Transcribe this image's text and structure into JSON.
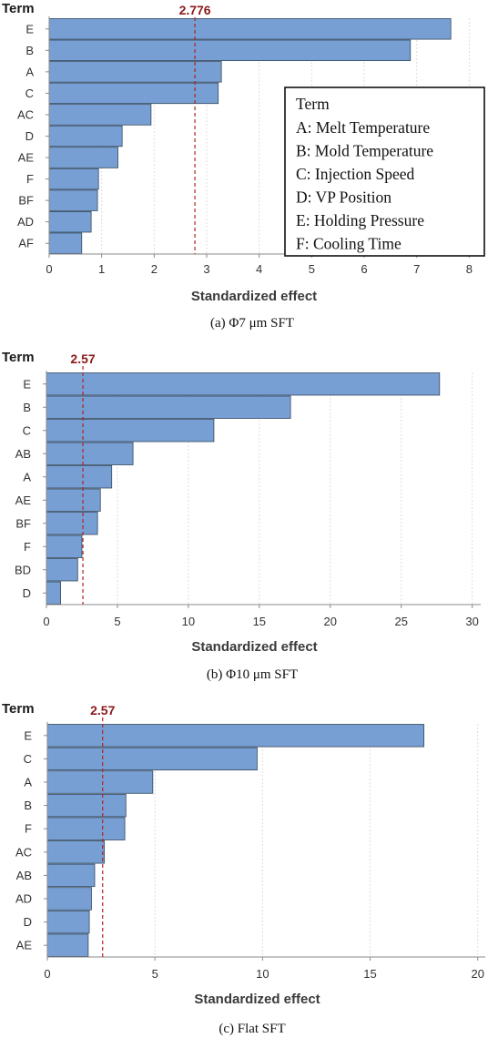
{
  "colors": {
    "bar_fill": "#779fd4",
    "bar_stroke": "#34495e",
    "ref_line": "#b22222",
    "ref_label": "#8b1a1a",
    "grid": "#dddddd",
    "axis": "#888888"
  },
  "legend": {
    "title": "Term",
    "items": [
      "A: Melt Temperature",
      "B: Mold Temperature",
      "C: Injection Speed",
      "D: VP Position",
      "E: Holding Pressure",
      "F: Cooling Time"
    ]
  },
  "chart_data": [
    {
      "type": "bar",
      "orientation": "horizontal",
      "ytitle": "Term",
      "xlabel": "Standardized effect",
      "caption": "(a) Φ7 μm SFT",
      "categories": [
        "E",
        "B",
        "A",
        "C",
        "AC",
        "D",
        "AE",
        "F",
        "BF",
        "AD",
        "AF"
      ],
      "values": [
        7.65,
        6.88,
        3.28,
        3.22,
        1.94,
        1.39,
        1.31,
        0.94,
        0.92,
        0.8,
        0.62
      ],
      "reference_line": 2.776,
      "reference_label": "2.776",
      "xlim": [
        0,
        8.15
      ],
      "xticks": [
        0,
        1,
        2,
        3,
        4,
        5,
        6,
        7,
        8
      ],
      "grid": true
    },
    {
      "type": "bar",
      "orientation": "horizontal",
      "ytitle": "Term",
      "xlabel": "Standardized effect",
      "caption": "(b) Φ10 μm SFT",
      "categories": [
        "E",
        "B",
        "C",
        "AB",
        "A",
        "AE",
        "BF",
        "F",
        "BD",
        "D"
      ],
      "values": [
        27.7,
        17.2,
        11.8,
        6.1,
        4.6,
        3.8,
        3.6,
        2.5,
        2.2,
        1.0
      ],
      "reference_line": 2.57,
      "reference_label": "2.57",
      "xlim": [
        0,
        30.6
      ],
      "xticks": [
        0,
        5,
        10,
        15,
        20,
        25,
        30
      ],
      "grid": true
    },
    {
      "type": "bar",
      "orientation": "horizontal",
      "ytitle": "Term",
      "xlabel": "Standardized effect",
      "caption": "(c) Flat SFT",
      "categories": [
        "E",
        "C",
        "A",
        "B",
        "F",
        "AC",
        "AB",
        "AD",
        "D",
        "AE"
      ],
      "values": [
        17.5,
        9.75,
        4.9,
        3.65,
        3.6,
        2.65,
        2.2,
        2.05,
        1.95,
        1.9
      ],
      "reference_line": 2.57,
      "reference_label": "2.57",
      "xlim": [
        0,
        20.35
      ],
      "xticks": [
        0,
        5,
        10,
        15,
        20
      ],
      "grid": true
    }
  ]
}
